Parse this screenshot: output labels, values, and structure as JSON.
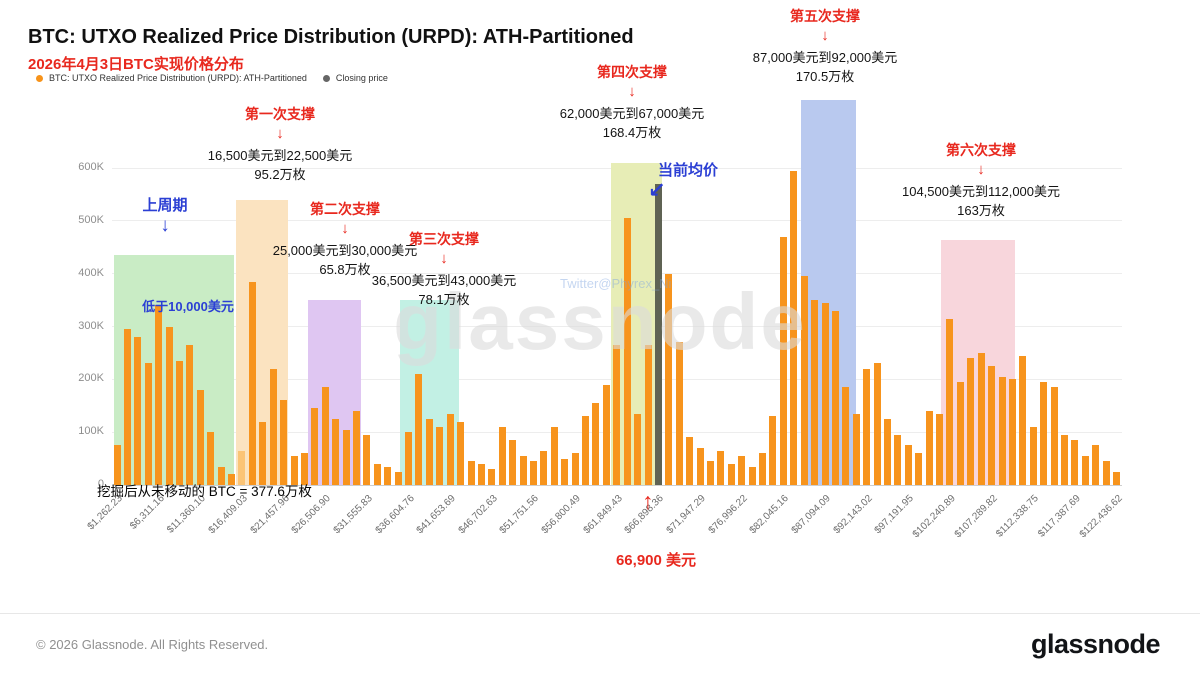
{
  "header": {
    "title": "BTC: UTXO Realized Price Distribution (URPD): ATH-Partitioned",
    "subtitle": "2026年4月3日BTC实现价格分布",
    "legend": [
      {
        "label": "BTC: UTXO Realized Price Distribution (URPD): ATH-Partitioned",
        "color": "#f7931a"
      },
      {
        "label": "Closing price",
        "color": "#666666"
      }
    ]
  },
  "chart_data": {
    "type": "bar",
    "title": "BTC: UTXO Realized Price Distribution (URPD): ATH-Partitioned",
    "y_unit": "BTC (thousands of coins)",
    "ylim": [
      0,
      728
    ],
    "grid": true,
    "y_ticks": [
      "0",
      "100K",
      "200K",
      "300K",
      "400K",
      "500K",
      "600K"
    ],
    "x_tick_labels": [
      "$1,262.23",
      "$6,311.16",
      "$11,360.10",
      "$16,409.03",
      "$21,457.96",
      "$26,506.90",
      "$31,555.83",
      "$36,604.76",
      "$41,653.69",
      "$46,702.63",
      "$51,751.56",
      "$56,800.49",
      "$61,849.43",
      "$66,898.36",
      "$71,947.29",
      "$76,996.22",
      "$82,045.16",
      "$87,094.09",
      "$92,143.02",
      "$97,191.95",
      "$102,240.89",
      "$107,289.82",
      "$112,338.75",
      "$117,387.69",
      "$122,436.62"
    ],
    "bar_color": "#f7941d",
    "light_bar_color": "#fbc476",
    "light_index": 12,
    "closing_bar_color": "#5f6354",
    "closing_index": 52,
    "closing_price_label": "$66,898.36",
    "values_btc_k": [
      75,
      295,
      280,
      230,
      340,
      300,
      235,
      265,
      180,
      100,
      35,
      20,
      65,
      385,
      120,
      220,
      160,
      55,
      60,
      145,
      185,
      125,
      105,
      140,
      95,
      40,
      35,
      25,
      100,
      210,
      125,
      110,
      135,
      120,
      45,
      40,
      30,
      110,
      85,
      55,
      45,
      65,
      110,
      50,
      60,
      130,
      155,
      190,
      265,
      505,
      135,
      265,
      570,
      400,
      270,
      90,
      70,
      45,
      65,
      40,
      55,
      35,
      60,
      130,
      470,
      595,
      395,
      350,
      345,
      330,
      185,
      135,
      220,
      230,
      125,
      95,
      75,
      60,
      140,
      135,
      315,
      195,
      240,
      250,
      225,
      205,
      200,
      245,
      110,
      195,
      185,
      95,
      85,
      55,
      75,
      45,
      25
    ],
    "regions": [
      {
        "name": "prev-cycle",
        "from_idx": 0.2,
        "to_idx": 11.7,
        "top_k": 435,
        "color": "#c9ecc5"
      },
      {
        "name": "support-1",
        "from_idx": 11.9,
        "to_idx": 16.9,
        "top_k": 540,
        "color": "#fbe3c0"
      },
      {
        "name": "support-2",
        "from_idx": 18.8,
        "to_idx": 23.9,
        "top_k": 350,
        "color": "#dfc6f2"
      },
      {
        "name": "support-3",
        "from_idx": 27.7,
        "to_idx": 33.3,
        "top_k": 350,
        "color": "#c2f0e4"
      },
      {
        "name": "support-4",
        "from_idx": 47.9,
        "to_idx": 52.8,
        "top_k": 610,
        "color": "#e7edb6"
      },
      {
        "name": "support-5",
        "from_idx": 66.2,
        "to_idx": 71.5,
        "top_k": 728,
        "color": "#b9c9ef"
      },
      {
        "name": "support-6",
        "from_idx": 79.6,
        "to_idx": 86.7,
        "top_k": 464,
        "color": "#f8d6dc"
      }
    ]
  },
  "annotations": {
    "prev_cycle": {
      "title": "上周期",
      "sub": "低于10,000美元"
    },
    "supports": [
      {
        "title": "第一次支撑",
        "range": "16,500美元到22,500美元",
        "amount": "95.2万枚"
      },
      {
        "title": "第二次支撑",
        "range": "25,000美元到30,000美元",
        "amount": "65.8万枚"
      },
      {
        "title": "第三次支撑",
        "range": "36,500美元到43,000美元",
        "amount": "78.1万枚"
      },
      {
        "title": "第四次支撑",
        "range": "62,000美元到67,000美元",
        "amount": "168.4万枚"
      },
      {
        "title": "第五次支撑",
        "range": "87,000美元到92,000美元",
        "amount": "170.5万枚"
      },
      {
        "title": "第六次支撑",
        "range": "104,500美元到112,000美元",
        "amount": "163万枚"
      }
    ],
    "current_avg": {
      "title": "当前均价"
    },
    "price_callout": {
      "text": "66,900 美元"
    },
    "mined_note": {
      "text": "挖掘后从未移动的 BTC = 377.6万枚"
    }
  },
  "watermark": {
    "text": "glassnode",
    "sub": "Twitter@Phyrex_Ni"
  },
  "footer": {
    "copyright": "© 2026 Glassnode. All Rights Reserved.",
    "logo": "glassnode"
  }
}
